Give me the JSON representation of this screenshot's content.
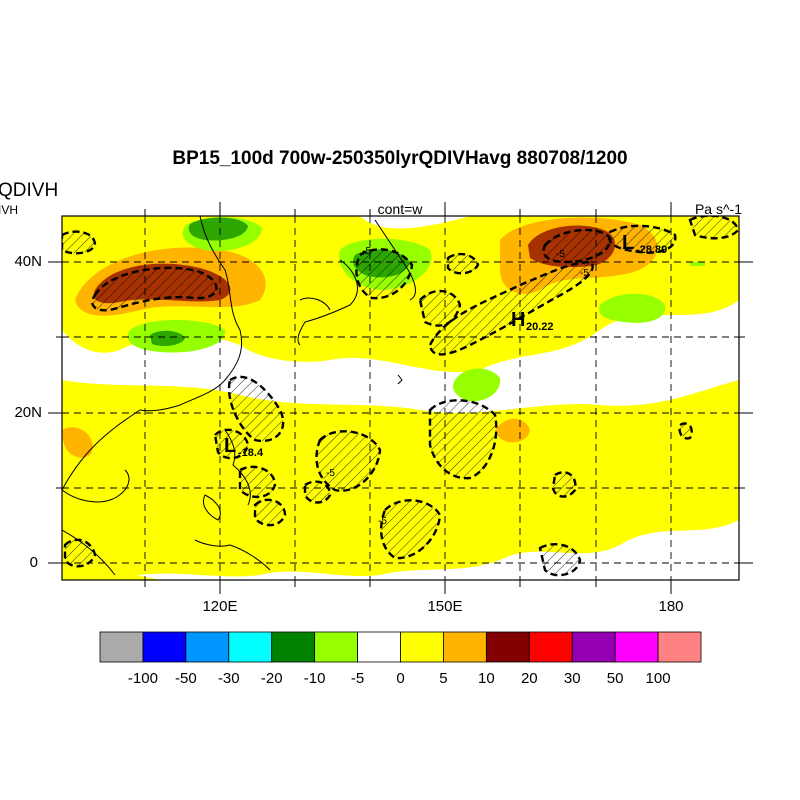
{
  "header": {
    "title": "BP15_100d 700w-250350lyrQDIVHavg  880708/1200",
    "left_label_1": "QDIVH",
    "left_label_2": "IVH",
    "center_label": "cont=w",
    "right_label": "Pa s^-1"
  },
  "axes": {
    "y_ticks": [
      "40N",
      "20N",
      "0"
    ],
    "x_ticks": [
      "120E",
      "150E",
      "180"
    ]
  },
  "annotations": {
    "low_1": "L",
    "low_1_value": "-28.89",
    "low_2": "L",
    "low_2_value": "-18.4",
    "high_1": "H",
    "high_1_value": "20.22",
    "contour_label": "-5"
  },
  "colorbar": {
    "colors": [
      "#aaaaaa",
      "#0000ff",
      "#0096ff",
      "#00ffff",
      "#008200",
      "#96ff00",
      "#ffffff",
      "#ffff00",
      "#ffb400",
      "#820000",
      "#ff0000",
      "#9600b4",
      "#ff00ff",
      "#ff8282"
    ],
    "labels": [
      "-100",
      "-50",
      "-30",
      "-20",
      "-10",
      "-5",
      "0",
      "5",
      "10",
      "20",
      "30",
      "50",
      "100"
    ]
  },
  "map_colors": {
    "yellow": "#ffff00",
    "orange": "#ffb400",
    "light_green": "#96ff00",
    "dark_green": "#008200",
    "dark_red": "#820000"
  }
}
